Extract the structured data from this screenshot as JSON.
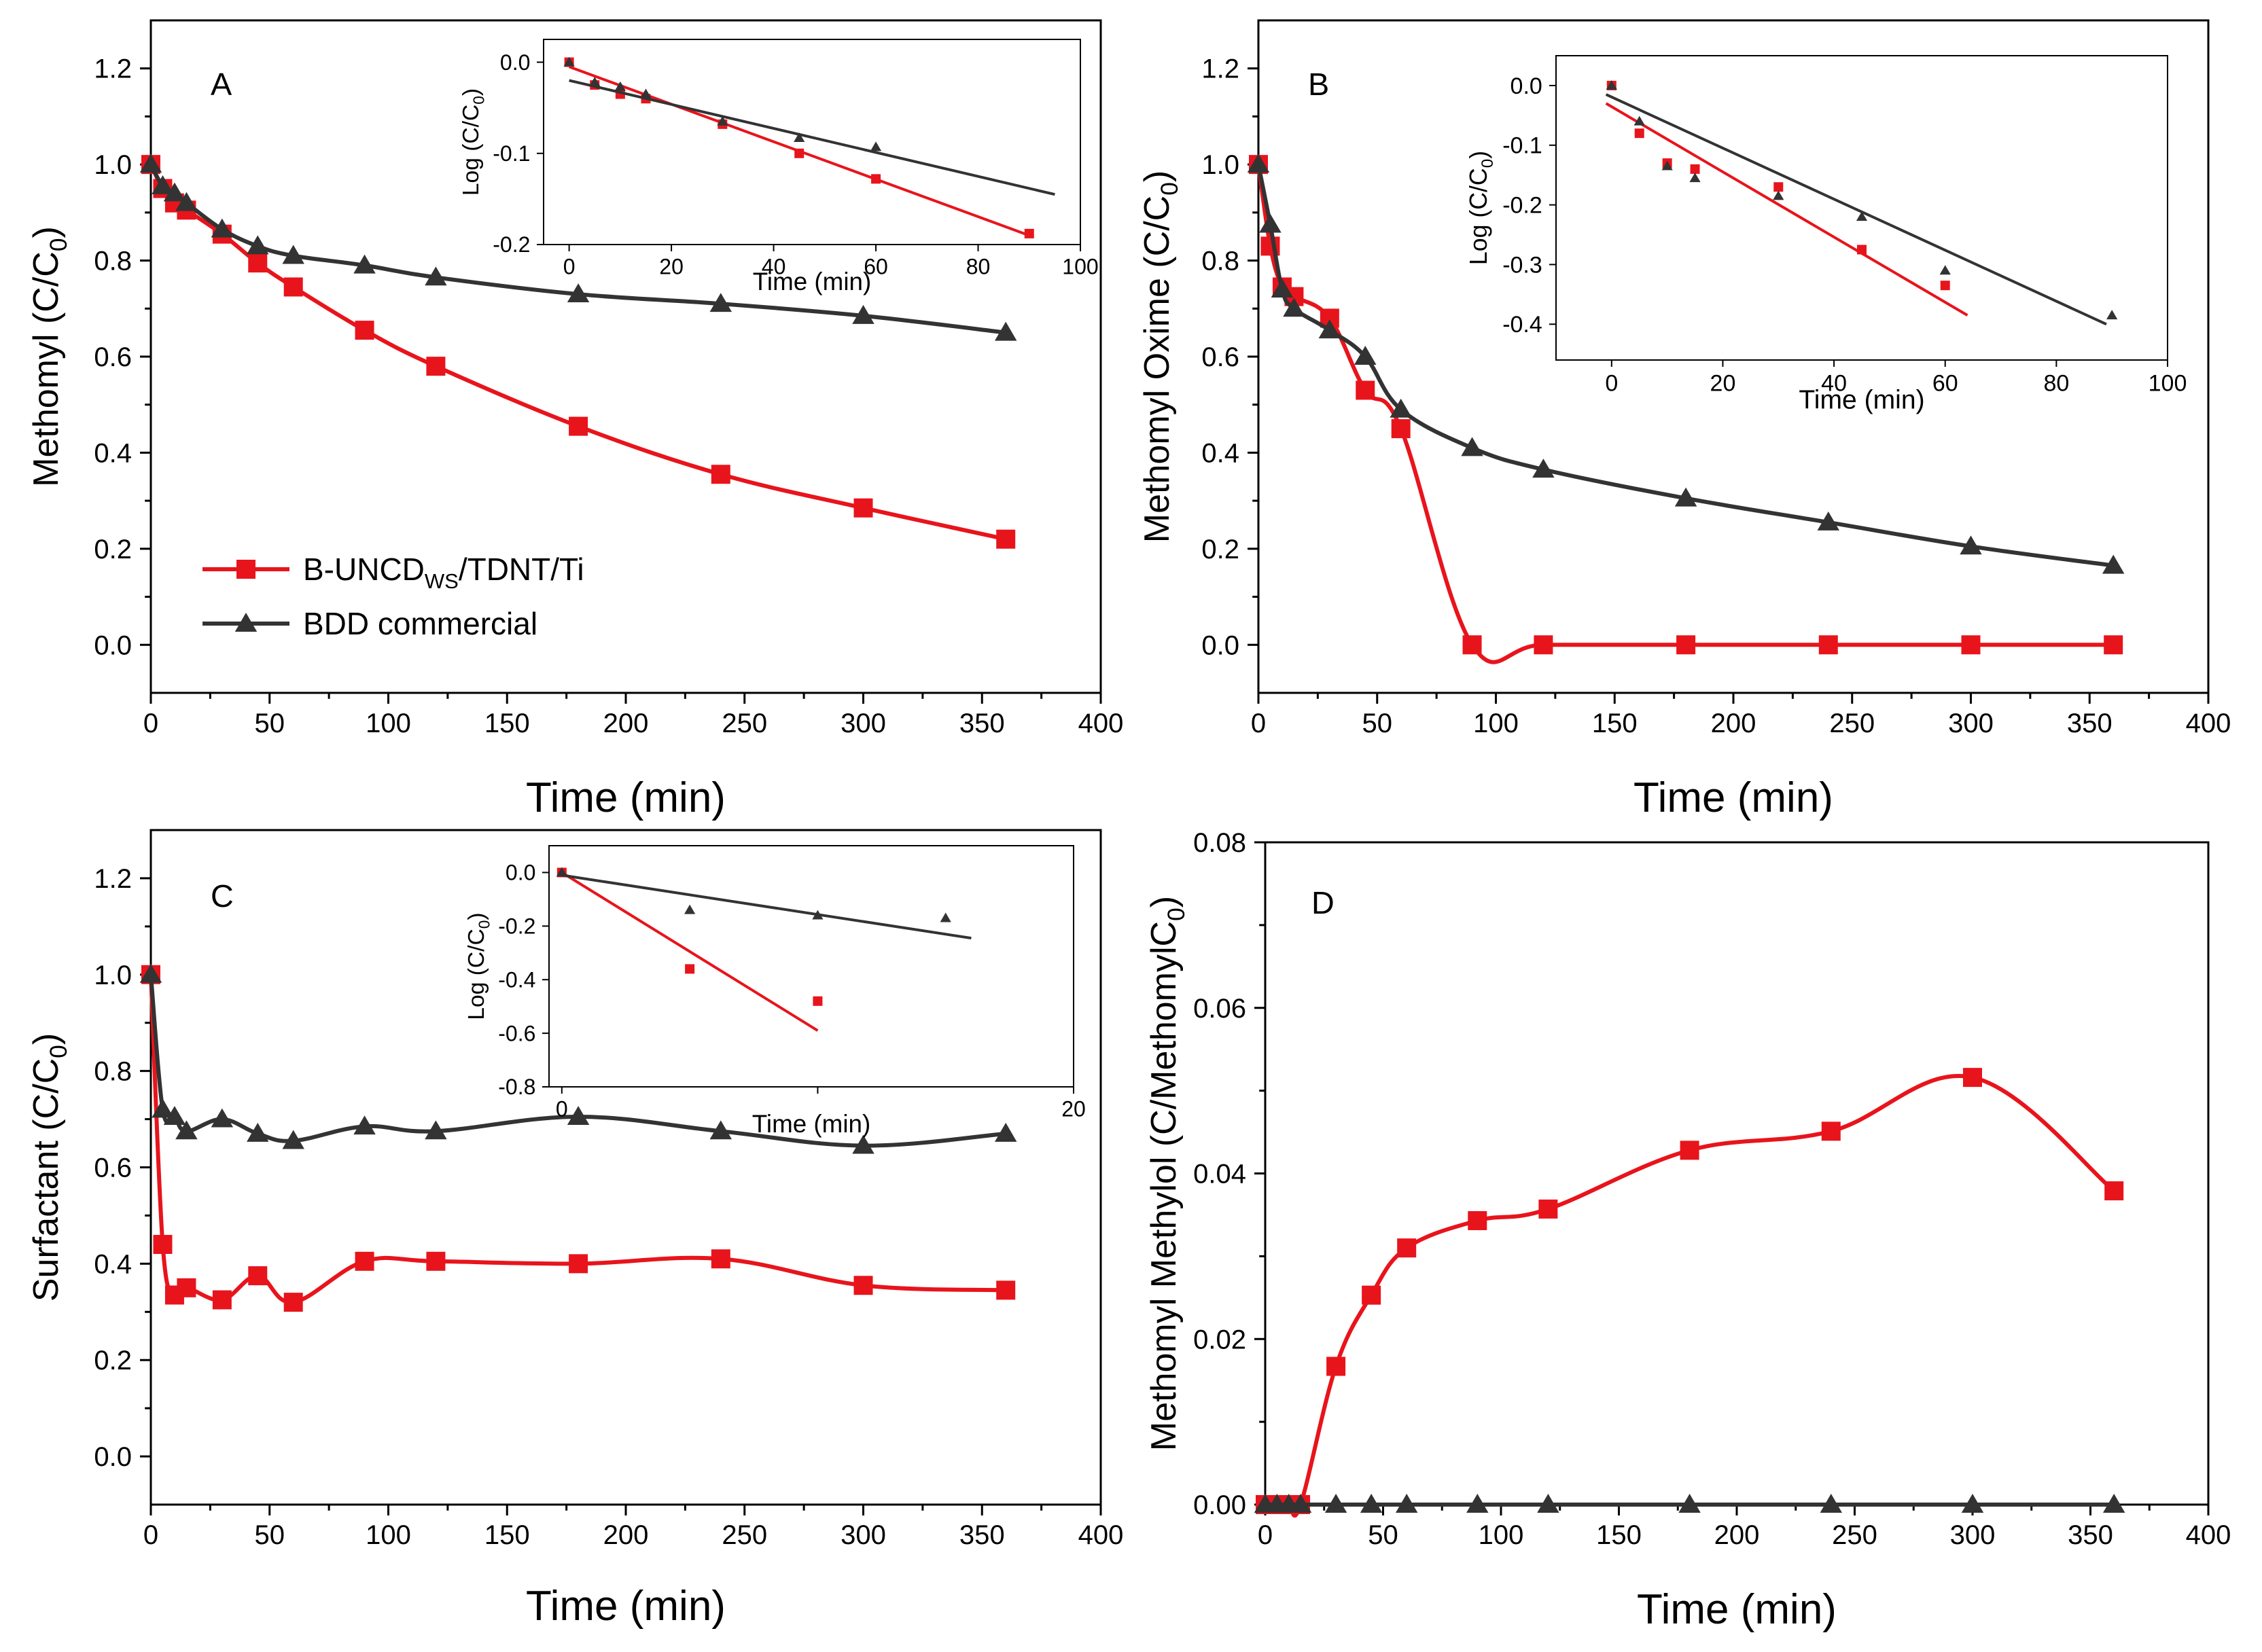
{
  "colors": {
    "red": "#e8141c",
    "black": "#333333",
    "pink": "#f4a3a8"
  },
  "legend": {
    "series1_main": "B-UNCD",
    "series1_sub": "WS",
    "series1_rest": "/TDNT/Ti",
    "series2": "BDD commercial"
  },
  "chart_data": [
    {
      "id": "A",
      "type": "line",
      "panel_label": "A",
      "xlabel": "Time (min)",
      "ylabel": "Methomyl (C/C",
      "ylabel_sub": "0",
      "ylabel_tail": ")",
      "xlim": [
        0,
        400
      ],
      "ylim": [
        -0.1,
        1.3
      ],
      "xticks": [
        "0",
        "50",
        "100",
        "150",
        "200",
        "250",
        "300",
        "350",
        "400"
      ],
      "yticks": [
        "0.0",
        "0.2",
        "0.4",
        "0.6",
        "0.8",
        "1.0",
        "1.2"
      ],
      "series": [
        {
          "name": "B-UNCDWS/TDNT/Ti",
          "marker": "square",
          "x": [
            0,
            5,
            10,
            15,
            30,
            45,
            60,
            90,
            120,
            180,
            240,
            300,
            360
          ],
          "y": [
            1.0,
            0.95,
            0.92,
            0.905,
            0.855,
            0.795,
            0.745,
            0.655,
            0.58,
            0.455,
            0.355,
            0.285,
            0.22
          ]
        },
        {
          "name": "BDD commercial",
          "marker": "triangle",
          "x": [
            0,
            5,
            10,
            15,
            30,
            45,
            60,
            90,
            120,
            180,
            240,
            300,
            360
          ],
          "y": [
            1.0,
            0.955,
            0.94,
            0.92,
            0.865,
            0.83,
            0.81,
            0.79,
            0.765,
            0.73,
            0.71,
            0.685,
            0.65
          ]
        }
      ],
      "inset": {
        "xlabel": "Time (min)",
        "ylabel": "Log (C/C",
        "ylabel_sub": "0",
        "ylabel_tail": ")",
        "xlim": [
          -5,
          100
        ],
        "ylim": [
          -0.2,
          0.025
        ],
        "xticks": [
          "0",
          "20",
          "40",
          "60",
          "80",
          "100"
        ],
        "yticks": [
          "0.0",
          "-0.1",
          "-0.2"
        ],
        "series": [
          {
            "name": "B-UNCDWS/TDNT/Ti",
            "marker": "square",
            "x": [
              0,
              5,
              10,
              15,
              30,
              45,
              60,
              90
            ],
            "y": [
              0,
              -0.025,
              -0.035,
              -0.04,
              -0.068,
              -0.1,
              -0.128,
              -0.188
            ],
            "fit": {
              "x": [
                0,
                90
              ],
              "y": [
                -0.005,
                -0.19
              ]
            }
          },
          {
            "name": "BDD commercial",
            "marker": "triangle",
            "x": [
              0,
              5,
              10,
              15,
              30,
              45,
              60
            ],
            "y": [
              0,
              -0.022,
              -0.027,
              -0.035,
              -0.065,
              -0.083,
              -0.093
            ],
            "fit": {
              "x": [
                0,
                95
              ],
              "y": [
                -0.02,
                -0.145
              ]
            }
          }
        ]
      }
    },
    {
      "id": "B",
      "type": "line",
      "panel_label": "B",
      "xlabel": "Time (min)",
      "ylabel": "Methomyl Oxime (C/C",
      "ylabel_sub": "0",
      "ylabel_tail": ")",
      "xlim": [
        0,
        400
      ],
      "ylim": [
        -0.1,
        1.3
      ],
      "xticks": [
        "0",
        "50",
        "100",
        "150",
        "200",
        "250",
        "300",
        "350",
        "400"
      ],
      "yticks": [
        "0.0",
        "0.2",
        "0.4",
        "0.6",
        "0.8",
        "1.0",
        "1.2"
      ],
      "series": [
        {
          "name": "B-UNCDWS/TDNT/Ti",
          "marker": "square",
          "x": [
            0,
            5,
            10,
            15,
            30,
            45,
            60,
            90,
            120,
            180,
            240,
            300,
            360
          ],
          "y": [
            1.0,
            0.83,
            0.745,
            0.725,
            0.68,
            0.53,
            0.45,
            0.0,
            0.0,
            0.0,
            0.0,
            0.0,
            0.0
          ]
        },
        {
          "name": "BDD commercial",
          "marker": "triangle",
          "x": [
            0,
            5,
            10,
            15,
            30,
            45,
            60,
            90,
            120,
            180,
            240,
            300,
            360
          ],
          "y": [
            1.0,
            0.875,
            0.74,
            0.7,
            0.655,
            0.6,
            0.49,
            0.41,
            0.365,
            0.305,
            0.255,
            0.205,
            0.165
          ]
        }
      ],
      "inset": {
        "xlabel": "Time (min)",
        "ylabel": "Log (C/C",
        "ylabel_sub": "0",
        "ylabel_tail": ")",
        "xlim": [
          -10,
          100
        ],
        "ylim": [
          -0.46,
          0.05
        ],
        "xticks": [
          "0",
          "20",
          "40",
          "60",
          "80",
          "100"
        ],
        "yticks": [
          "0.0",
          "-0.1",
          "-0.2",
          "-0.3",
          "-0.4"
        ],
        "series": [
          {
            "name": "B-UNCDWS/TDNT/Ti",
            "marker": "square",
            "x": [
              0,
              5,
              10,
              15,
              30,
              45,
              60
            ],
            "y": [
              0,
              -0.08,
              -0.13,
              -0.14,
              -0.17,
              -0.275,
              -0.335
            ],
            "fit": {
              "x": [
                -1,
                64
              ],
              "y": [
                -0.03,
                -0.385
              ]
            }
          },
          {
            "name": "BDD commercial",
            "marker": "triangle",
            "x": [
              0,
              5,
              10,
              15,
              30,
              45,
              60,
              90
            ],
            "y": [
              0,
              -0.06,
              -0.135,
              -0.155,
              -0.185,
              -0.22,
              -0.31,
              -0.385
            ],
            "fit": {
              "x": [
                -1,
                89
              ],
              "y": [
                -0.015,
                -0.4
              ]
            }
          }
        ]
      }
    },
    {
      "id": "C",
      "type": "line",
      "panel_label": "C",
      "xlabel": "Time (min)",
      "ylabel": "Surfactant (C/C",
      "ylabel_sub": "0",
      "ylabel_tail": ")",
      "xlim": [
        0,
        400
      ],
      "ylim": [
        -0.1,
        1.3
      ],
      "xticks": [
        "0",
        "50",
        "100",
        "150",
        "200",
        "250",
        "300",
        "350",
        "400"
      ],
      "yticks": [
        "0.0",
        "0.2",
        "0.4",
        "0.6",
        "0.8",
        "1.0",
        "1.2"
      ],
      "series": [
        {
          "name": "B-UNCDWS/TDNT/Ti",
          "marker": "square",
          "x": [
            0,
            5,
            10,
            15,
            30,
            45,
            60,
            90,
            120,
            180,
            240,
            300,
            360
          ],
          "y": [
            1.0,
            0.44,
            0.335,
            0.35,
            0.325,
            0.375,
            0.32,
            0.405,
            0.405,
            0.4,
            0.41,
            0.355,
            0.345
          ]
        },
        {
          "name": "BDD commercial",
          "marker": "triangle",
          "x": [
            0,
            5,
            10,
            15,
            30,
            45,
            60,
            90,
            120,
            180,
            240,
            300,
            360
          ],
          "y": [
            1.0,
            0.72,
            0.705,
            0.675,
            0.7,
            0.67,
            0.655,
            0.685,
            0.675,
            0.705,
            0.675,
            0.645,
            0.67
          ]
        }
      ],
      "inset": {
        "xlabel": "Time (min)",
        "ylabel": "Log (C/C",
        "ylabel_sub": "0",
        "ylabel_tail": ")",
        "xlim": [
          -0.5,
          20
        ],
        "ylim": [
          -0.8,
          0.1
        ],
        "xticks": [
          "0",
          "10",
          "20"
        ],
        "xticks_shown": [
          "0",
          "",
          "20"
        ],
        "yticks": [
          "0.0",
          "-0.2",
          "-0.4",
          "-0.6",
          "-0.8"
        ],
        "series": [
          {
            "name": "B-UNCDWS/TDNT/Ti",
            "marker": "square",
            "x": [
              0,
              5,
              10
            ],
            "y": [
              0,
              -0.36,
              -0.48
            ],
            "fit": {
              "x": [
                0,
                10
              ],
              "y": [
                0,
                -0.59
              ]
            }
          },
          {
            "name": "BDD commercial",
            "marker": "triangle",
            "x": [
              0,
              5,
              10,
              15
            ],
            "y": [
              0,
              -0.14,
              -0.16,
              -0.17
            ],
            "fit": {
              "x": [
                0,
                16
              ],
              "y": [
                -0.01,
                -0.245
              ]
            }
          }
        ]
      }
    },
    {
      "id": "D",
      "type": "line",
      "panel_label": "D",
      "xlabel": "Time (min)",
      "ylabel": "Methomyl Methylol (C/MethomylC",
      "ylabel_sub": "0",
      "ylabel_tail": ")",
      "xlim": [
        0,
        400
      ],
      "ylim": [
        0,
        0.08
      ],
      "xticks": [
        "0",
        "50",
        "100",
        "150",
        "200",
        "250",
        "300",
        "350",
        "400"
      ],
      "yticks": [
        "0.00",
        "0.02",
        "0.04",
        "0.06",
        "0.08"
      ],
      "series": [
        {
          "name": "B-UNCDWS/TDNT/Ti",
          "marker": "square",
          "x": [
            0,
            5,
            10,
            15,
            30,
            45,
            60,
            90,
            120,
            180,
            240,
            300,
            360
          ],
          "y": [
            0,
            0,
            0,
            0,
            0.0167,
            0.0253,
            0.031,
            0.0343,
            0.0357,
            0.0428,
            0.0451,
            0.0516,
            0.0379
          ]
        },
        {
          "name": "BDD commercial",
          "marker": "triangle",
          "x": [
            0,
            5,
            10,
            15,
            30,
            45,
            60,
            90,
            120,
            180,
            240,
            300,
            360
          ],
          "y": [
            0,
            0,
            0,
            0,
            0,
            0,
            0,
            0,
            0,
            0,
            0,
            0,
            0
          ]
        }
      ]
    }
  ]
}
